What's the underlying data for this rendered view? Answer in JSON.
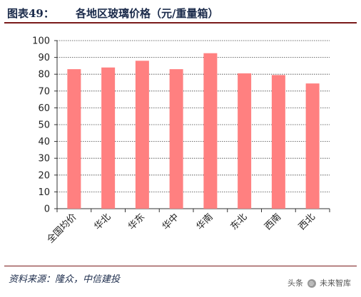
{
  "header": {
    "figure_number": "图表49：",
    "title": "各地区玻璃价格（元/重量箱）"
  },
  "footer": {
    "source": "资料来源：隆众，中信建投",
    "watermark_left": "头条",
    "watermark_right": "未来智库"
  },
  "colors": {
    "bar": "#ff8080",
    "grid": "#404040",
    "title": "#1a2a4a",
    "rule": "#7a1a1a"
  },
  "chart_data": {
    "type": "bar",
    "title": "各地区玻璃价格（元/重量箱）",
    "xlabel": "",
    "ylabel": "",
    "categories": [
      "全国均价",
      "华北",
      "华东",
      "华中",
      "华南",
      "东北",
      "西南",
      "西北"
    ],
    "values": [
      83,
      84,
      88,
      83,
      92.5,
      80.5,
      79.5,
      74.5
    ],
    "ylim": [
      0,
      100
    ],
    "yticks": [
      0,
      10,
      20,
      30,
      40,
      50,
      60,
      70,
      80,
      90,
      100
    ],
    "grid": true,
    "legend": "none"
  }
}
